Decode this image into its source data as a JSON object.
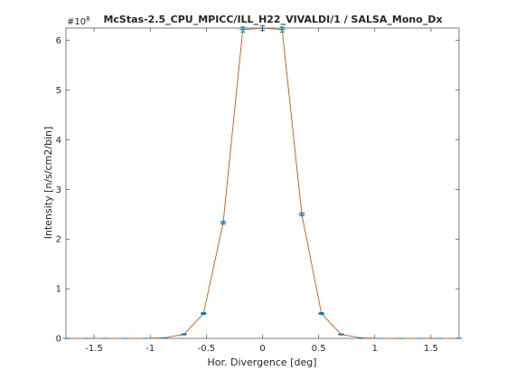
{
  "chart_data": {
    "type": "line",
    "title": "McStas-2.5_CPU_MPICC/ILL_H22_VIVALDI/1 / SALSA_Mono_Dx",
    "xlabel": "Hor. Divergence [deg]",
    "ylabel": "Intensity [n/s/cm2/bin]",
    "y_exponent_label": "#10",
    "y_exponent": "8",
    "xlim": [
      -1.75,
      1.75
    ],
    "ylim": [
      0,
      6.25
    ],
    "x_ticks": [
      -1.5,
      -1,
      -0.5,
      0,
      0.5,
      1,
      1.5
    ],
    "x_tick_labels": [
      "-1.5",
      "-1",
      "-0.5",
      "0",
      "0.5",
      "1",
      "1.5"
    ],
    "y_ticks": [
      0,
      1,
      2,
      3,
      4,
      5,
      6
    ],
    "y_tick_labels": [
      "0",
      "1",
      "2",
      "3",
      "4",
      "5",
      "6"
    ],
    "grid": false,
    "series": [
      {
        "line_color": "#d95319",
        "marker_color": "#0072bd",
        "x": [
          -1.75,
          -1.575,
          -1.4,
          -1.225,
          -1.05,
          -0.875,
          -0.7,
          -0.525,
          -0.35,
          -0.175,
          0,
          0.175,
          0.35,
          0.525,
          0.7,
          0.875,
          1.05,
          1.225,
          1.4,
          1.575,
          1.75
        ],
        "y": [
          0,
          0,
          0,
          0,
          0,
          0.01,
          0.08,
          0.5,
          2.33,
          6.22,
          6.25,
          6.22,
          2.5,
          0.5,
          0.08,
          0.01,
          0,
          0,
          0,
          0,
          0
        ],
        "error": [
          0,
          0,
          0,
          0,
          0,
          0,
          0.01,
          0.02,
          0.03,
          0.05,
          0.05,
          0.05,
          0.03,
          0.02,
          0.01,
          0,
          0,
          0,
          0,
          0,
          0
        ]
      }
    ]
  }
}
